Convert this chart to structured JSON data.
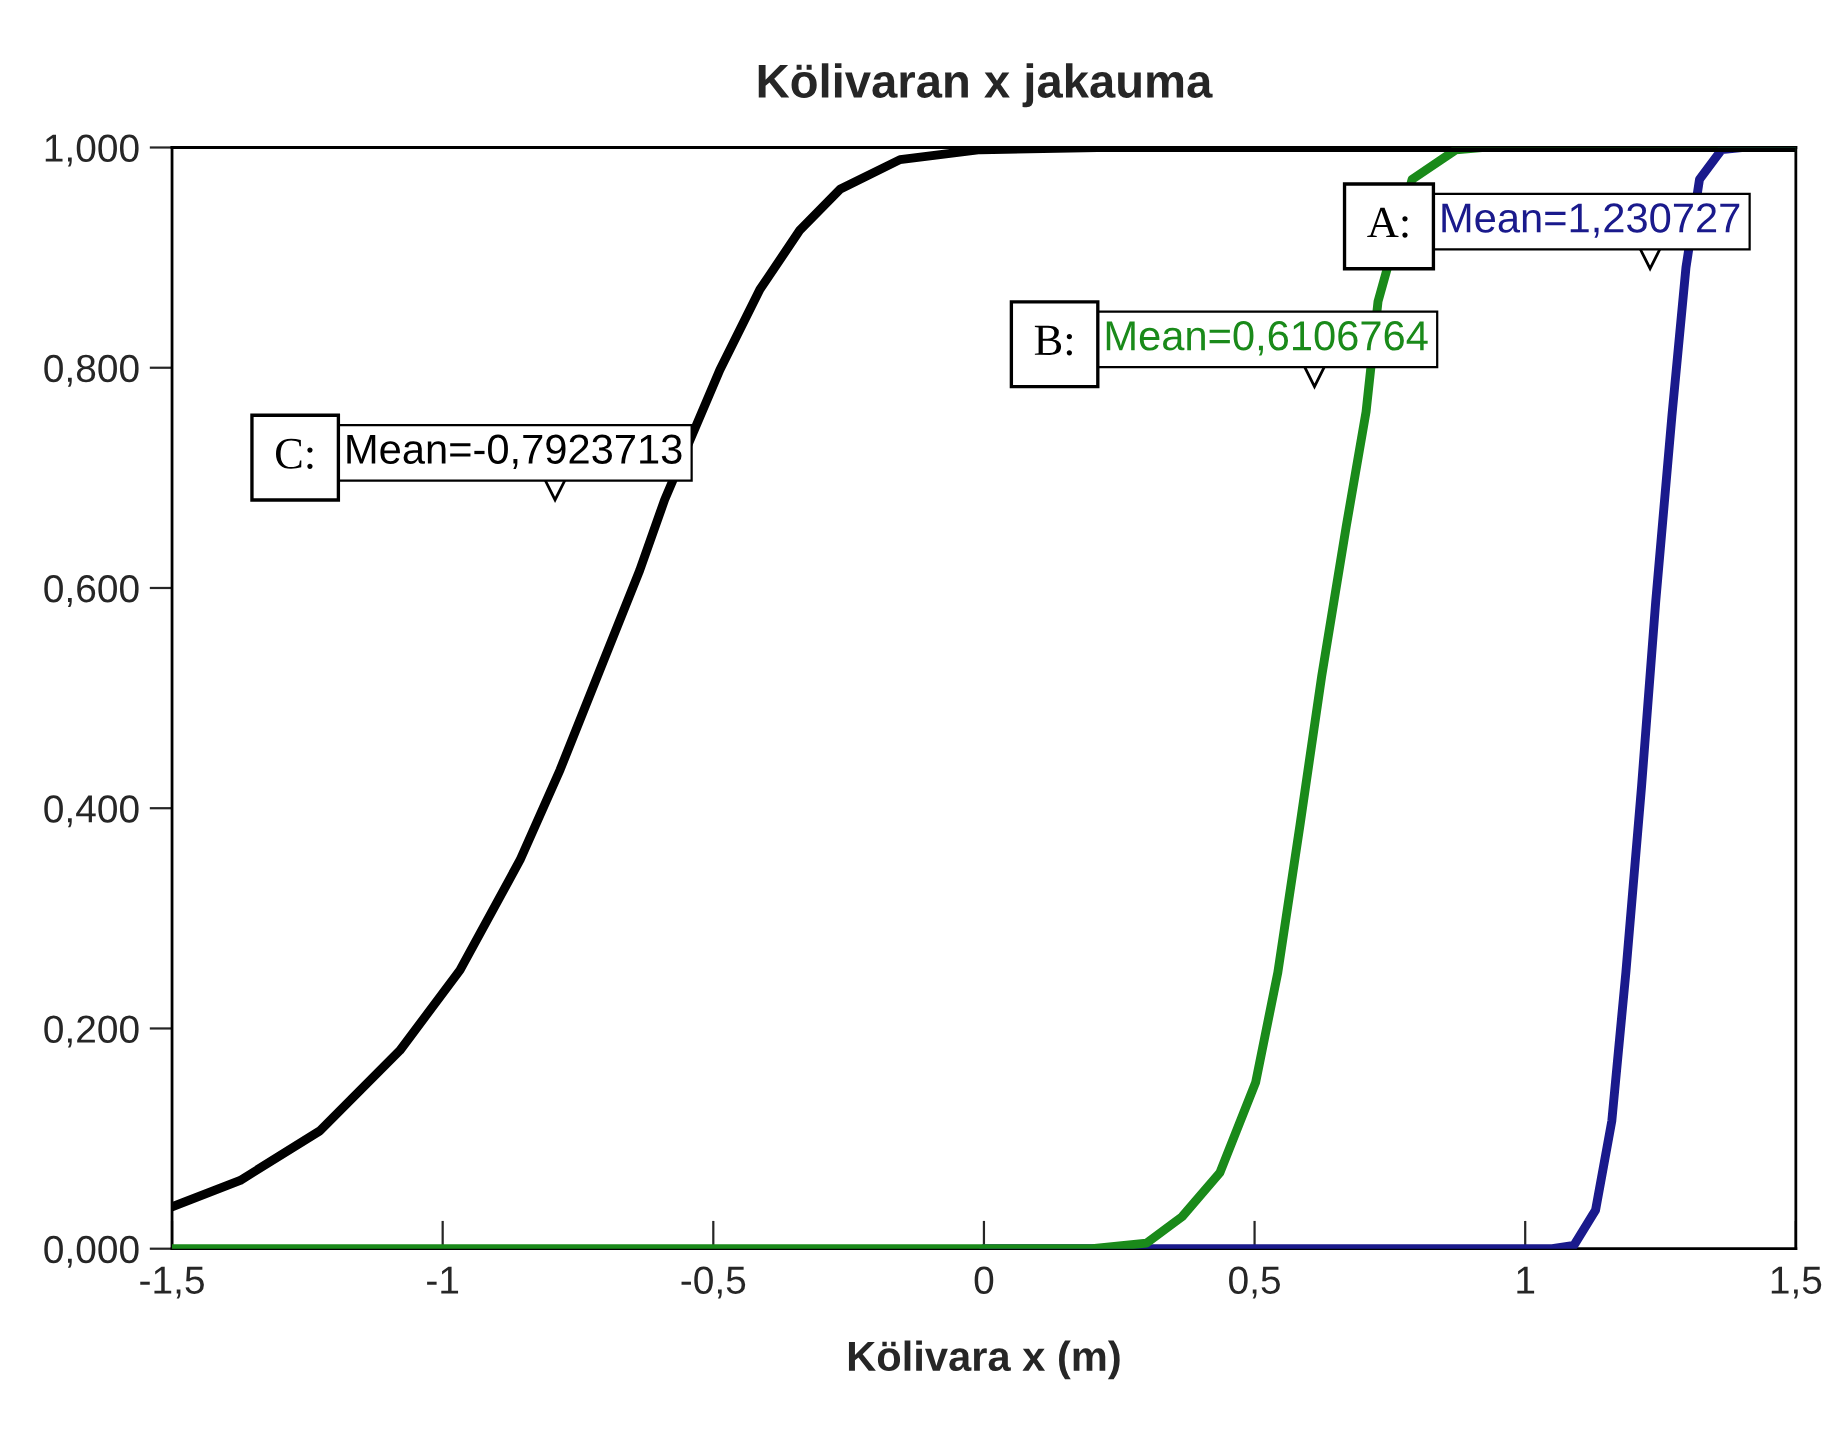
{
  "chart_data": {
    "type": "line",
    "title": "Kölivaran x jakauma",
    "xlabel": "Kölivara x (m)",
    "xlim": [
      -1.5,
      1.5
    ],
    "ylim": [
      0,
      1
    ],
    "xticks": [
      {
        "value": -1.5,
        "label": "-1,5"
      },
      {
        "value": -1,
        "label": "-1"
      },
      {
        "value": -0.5,
        "label": "-0,5"
      },
      {
        "value": 0,
        "label": "0"
      },
      {
        "value": 0.5,
        "label": "0,5"
      },
      {
        "value": 1,
        "label": "1"
      },
      {
        "value": 1.5,
        "label": "1,5"
      }
    ],
    "yticks": [
      {
        "value": 0,
        "label": "0,000"
      },
      {
        "value": 0.2,
        "label": "0,200"
      },
      {
        "value": 0.4,
        "label": "0,400"
      },
      {
        "value": 0.6,
        "label": "0,600"
      },
      {
        "value": 0.8,
        "label": "0,800"
      },
      {
        "value": 1,
        "label": "1,000"
      }
    ],
    "grid": false,
    "legend": false,
    "marker": "none",
    "line_style": "solid",
    "series": [
      {
        "color": "#1a1a8c",
        "x": [
          0,
          1.05,
          1.09,
          1.13,
          1.16,
          1.186,
          1.215,
          1.241,
          1.271,
          1.297,
          1.322,
          1.363,
          1.4,
          1.5
        ],
        "values": [
          0,
          0,
          0.003,
          0.035,
          0.116,
          0.251,
          0.42,
          0.587,
          0.756,
          0.891,
          0.971,
          0.998,
          1,
          1
        ]
      },
      {
        "color": "#1a8a1a",
        "x": [
          -1.5,
          0.2,
          0.3,
          0.366,
          0.436,
          0.502,
          0.543,
          0.584,
          0.624,
          0.669,
          0.706,
          0.728,
          0.791,
          0.872,
          0.92,
          1.5
        ],
        "values": [
          0,
          0,
          0.005,
          0.029,
          0.069,
          0.151,
          0.251,
          0.385,
          0.52,
          0.655,
          0.76,
          0.86,
          0.971,
          0.998,
          1,
          1
        ]
      },
      {
        "color": "#000000",
        "x": [
          -1.5,
          -1.374,
          -1.227,
          -1.079,
          -0.968,
          -0.857,
          -0.783,
          -0.71,
          -0.636,
          -0.59,
          -0.488,
          -0.414,
          -0.34,
          -0.266,
          -0.155,
          -0.007,
          0.21,
          1.5
        ],
        "values": [
          0.038,
          0.062,
          0.107,
          0.18,
          0.253,
          0.353,
          0.435,
          0.525,
          0.616,
          0.68,
          0.798,
          0.871,
          0.925,
          0.962,
          0.989,
          0.998,
          1,
          1
        ]
      }
    ],
    "annotations": [
      "A:",
      {
        "text": "Mean=1,230727",
        "x": 1.230727,
        "y": 0.9
      },
      "B:",
      {
        "text": "Mean=0,6106764",
        "x": 0.6106764,
        "y": 0.793
      },
      "C:",
      {
        "text": "Mean=-0,7923713",
        "x": -0.7923713,
        "y": 0.69
      }
    ]
  }
}
